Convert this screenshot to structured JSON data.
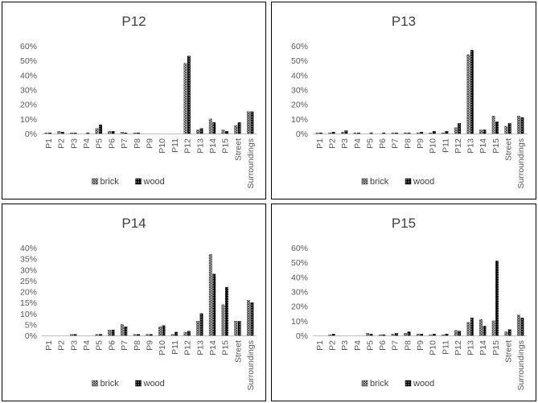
{
  "chart_data": [
    {
      "type": "bar",
      "title": "P12",
      "categories": [
        "P1",
        "P2",
        "P3",
        "P4",
        "P5",
        "P6",
        "P7",
        "P8",
        "P9",
        "P10",
        "P11",
        "P12",
        "P13",
        "P14",
        "P15",
        "Street",
        "Surroundings"
      ],
      "series": [
        {
          "name": "brick",
          "values": [
            0.5,
            1.5,
            0.5,
            0,
            3.5,
            1.5,
            1.0,
            0.5,
            0,
            0,
            0,
            48,
            2.5,
            10,
            2.5,
            5.5,
            15
          ]
        },
        {
          "name": "wood",
          "values": [
            0.5,
            1.0,
            0.5,
            0.5,
            6.0,
            1.5,
            0.5,
            0.5,
            0,
            0,
            0,
            53,
            3.5,
            7.5,
            1.5,
            7.5,
            15
          ]
        }
      ],
      "ylim": [
        0,
        60
      ],
      "yticks": [
        "0%",
        "10%",
        "20%",
        "30%",
        "40%",
        "50%",
        "60%"
      ],
      "legend": "bottom"
    },
    {
      "type": "bar",
      "title": "P13",
      "categories": [
        "P1",
        "P2",
        "P3",
        "P4",
        "P5",
        "P6",
        "P7",
        "P8",
        "P9",
        "P10",
        "P11",
        "P12",
        "P13",
        "P14",
        "P15",
        "Street",
        "Surroundings"
      ],
      "series": [
        {
          "name": "brick",
          "values": [
            0.5,
            0.5,
            1.0,
            0.5,
            0,
            0,
            0.5,
            0.5,
            0.5,
            0.5,
            0.5,
            4.0,
            54,
            2.5,
            12,
            5.0,
            12
          ]
        },
        {
          "name": "wood",
          "values": [
            0.5,
            1.0,
            2.0,
            0.5,
            0.5,
            0.5,
            0.5,
            0.5,
            1.0,
            1.5,
            1.5,
            7.0,
            57,
            2.5,
            8.0,
            7.0,
            11
          ]
        }
      ],
      "ylim": [
        0,
        60
      ],
      "yticks": [
        "0%",
        "10%",
        "20%",
        "30%",
        "40%",
        "50%",
        "60%"
      ],
      "legend": "bottom"
    },
    {
      "type": "bar",
      "title": "P14",
      "categories": [
        "P1",
        "P2",
        "P3",
        "P4",
        "P5",
        "P6",
        "P7",
        "P8",
        "P9",
        "P10",
        "P11",
        "P12",
        "P13",
        "P14",
        "P15",
        "Street",
        "Surroundings"
      ],
      "series": [
        {
          "name": "brick",
          "values": [
            0,
            0,
            0.5,
            0,
            0.5,
            2.5,
            5.0,
            0.5,
            0.5,
            4.0,
            0.5,
            1.5,
            6.5,
            37,
            14,
            6.5,
            16
          ]
        },
        {
          "name": "wood",
          "values": [
            0,
            0,
            0.5,
            0,
            0.5,
            2.5,
            4.0,
            0.5,
            0.5,
            4.5,
            1.5,
            2.0,
            10,
            28,
            22,
            6.5,
            15
          ]
        }
      ],
      "ylim": [
        0,
        40
      ],
      "yticks": [
        "0%",
        "5%",
        "10%",
        "15%",
        "20%",
        "25%",
        "30%",
        "35%",
        "40%"
      ],
      "legend": "bottom"
    },
    {
      "type": "bar",
      "title": "P15",
      "categories": [
        "P1",
        "P2",
        "P3",
        "P4",
        "P5",
        "P6",
        "P7",
        "P8",
        "P9",
        "P10",
        "P11",
        "P12",
        "P13",
        "P14",
        "P15",
        "Street",
        "Surroundings"
      ],
      "series": [
        {
          "name": "brick",
          "values": [
            0,
            0.5,
            0,
            0,
            1.5,
            0.5,
            1.0,
            1.5,
            1.0,
            0.5,
            0.5,
            3.5,
            9.0,
            11,
            10,
            2.5,
            14
          ]
        },
        {
          "name": "wood",
          "values": [
            0,
            1.0,
            0,
            0,
            1.0,
            0.5,
            1.5,
            2.5,
            1.0,
            1.0,
            1.0,
            3.0,
            12,
            6.5,
            51,
            4.0,
            12
          ]
        }
      ],
      "ylim": [
        0,
        60
      ],
      "yticks": [
        "0%",
        "10%",
        "20%",
        "30%",
        "40%",
        "50%",
        "60%"
      ],
      "legend": "bottom"
    }
  ]
}
